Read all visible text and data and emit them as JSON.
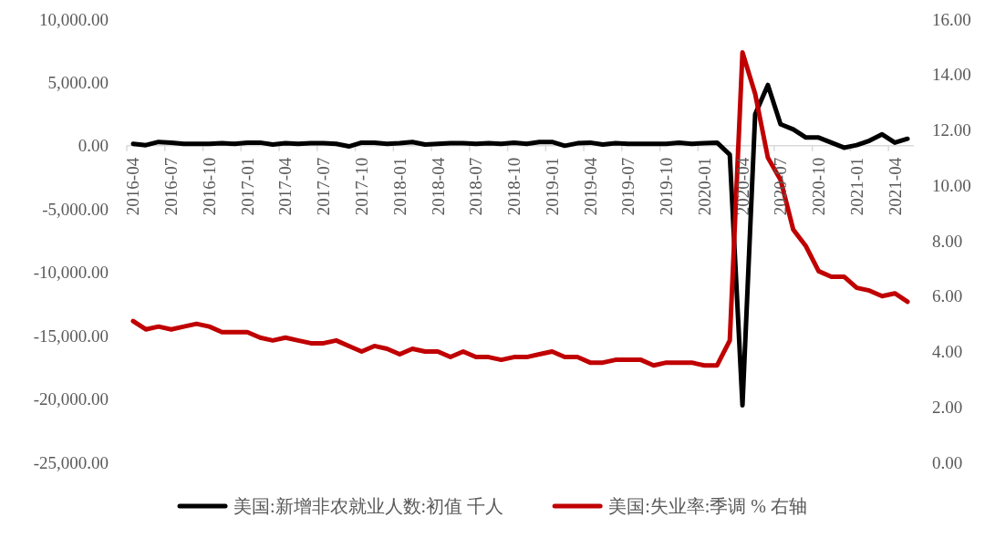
{
  "chart_data": {
    "type": "line",
    "categories": [
      "2016-04",
      null,
      null,
      "2016-07",
      null,
      null,
      "2016-10",
      null,
      null,
      "2017-01",
      null,
      null,
      "2017-04",
      null,
      null,
      "2017-07",
      null,
      null,
      "2017-10",
      null,
      null,
      "2018-01",
      null,
      null,
      "2018-04",
      null,
      null,
      "2018-07",
      null,
      null,
      "2018-10",
      null,
      null,
      "2019-01",
      null,
      null,
      "2019-04",
      null,
      null,
      "2019-07",
      null,
      null,
      "2019-10",
      null,
      null,
      "2020-01",
      null,
      null,
      "2020-04",
      null,
      null,
      "2020-07",
      null,
      null,
      "2020-10",
      null,
      null,
      "2021-01",
      null,
      null,
      "2021-04",
      null
    ],
    "series": [
      {
        "name": "美国:新增非农就业人数:初值 千人",
        "color": "#000000",
        "values": [
          150,
          50,
          300,
          250,
          150,
          150,
          150,
          200,
          150,
          250,
          250,
          100,
          200,
          150,
          200,
          200,
          150,
          -50,
          250,
          250,
          150,
          200,
          300,
          100,
          150,
          200,
          200,
          150,
          200,
          150,
          250,
          150,
          300,
          300,
          0,
          200,
          250,
          100,
          200,
          150,
          150,
          150,
          150,
          250,
          150,
          200,
          250,
          -700,
          -20500,
          2500,
          4800,
          1700,
          1300,
          650,
          650,
          250,
          -150,
          50,
          400,
          900,
          250,
          550
        ]
      },
      {
        "name": "美国:失业率:季调 % 右轴",
        "color": "#c00000",
        "axis": "y2",
        "values": [
          5.1,
          4.8,
          4.9,
          4.8,
          4.9,
          5.0,
          4.9,
          4.7,
          4.7,
          4.7,
          4.5,
          4.4,
          4.5,
          4.4,
          4.3,
          4.3,
          4.4,
          4.2,
          4.0,
          4.2,
          4.1,
          3.9,
          4.1,
          4.0,
          4.0,
          3.8,
          4.0,
          3.8,
          3.8,
          3.7,
          3.8,
          3.8,
          3.9,
          4.0,
          3.8,
          3.8,
          3.6,
          3.6,
          3.7,
          3.7,
          3.7,
          3.5,
          3.6,
          3.6,
          3.6,
          3.5,
          3.5,
          4.4,
          14.8,
          13.3,
          11.0,
          10.2,
          8.4,
          7.8,
          6.9,
          6.7,
          6.7,
          6.3,
          6.2,
          6.0,
          6.1,
          5.8
        ]
      }
    ],
    "ylim": [
      -25000,
      10000
    ],
    "yticks": [
      {
        "value": 10000,
        "label": "10,000.00"
      },
      {
        "value": 5000,
        "label": "5,000.00"
      },
      {
        "value": 0,
        "label": "0.00"
      },
      {
        "value": -5000,
        "label": "-5,000.00"
      },
      {
        "value": -10000,
        "label": "-10,000.00"
      },
      {
        "value": -15000,
        "label": "-15,000.00"
      },
      {
        "value": -20000,
        "label": "-20,000.00"
      },
      {
        "value": -25000,
        "label": "-25,000.00"
      }
    ],
    "y2lim": [
      0,
      16
    ],
    "y2ticks": [
      {
        "value": 0,
        "label": "0.00"
      },
      {
        "value": 2,
        "label": "2.00"
      },
      {
        "value": 4,
        "label": "4.00"
      },
      {
        "value": 6,
        "label": "6.00"
      },
      {
        "value": 8,
        "label": "8.00"
      },
      {
        "value": 10,
        "label": "10.00"
      },
      {
        "value": 12,
        "label": "12.00"
      },
      {
        "value": 14,
        "label": "14.00"
      },
      {
        "value": 16,
        "label": "16.00"
      }
    ],
    "legend": "bottom"
  }
}
